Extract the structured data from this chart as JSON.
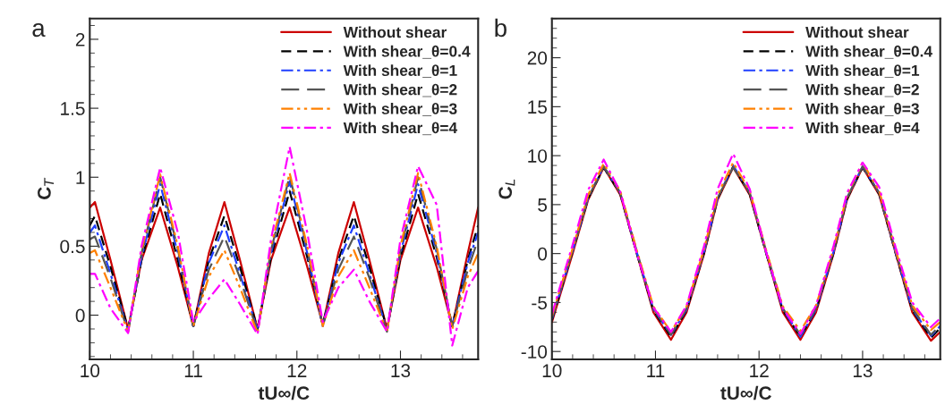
{
  "chart_data": [
    {
      "type": "line",
      "xlabel": "tU∞/C",
      "ylabel": "C$_{T}$",
      "annotations": [
        "a"
      ],
      "xlim": [
        10,
        13.75
      ],
      "xticks": [
        10,
        11,
        12,
        13
      ],
      "ylim": [
        -0.32,
        2.15
      ],
      "yticks": [
        0,
        0.5,
        1,
        1.5,
        2
      ],
      "legend": "top right",
      "grid": false,
      "marker": "none",
      "x": [
        10.0,
        10.05,
        10.2,
        10.37,
        10.5,
        10.68,
        10.85,
        11.0,
        11.15,
        11.3,
        11.45,
        11.62,
        11.75,
        11.93,
        12.1,
        12.25,
        12.4,
        12.55,
        12.7,
        12.87,
        13.0,
        13.17,
        13.35,
        13.5,
        13.65,
        13.75
      ],
      "series": [
        {
          "name": "Without shear",
          "color": "#cc0000",
          "line_style": "solid",
          "values": [
            0.78,
            0.82,
            0.4,
            -0.1,
            0.4,
            0.78,
            0.35,
            -0.08,
            0.45,
            0.82,
            0.4,
            -0.1,
            0.4,
            0.78,
            0.35,
            -0.07,
            0.45,
            0.82,
            0.4,
            -0.1,
            0.4,
            0.78,
            0.35,
            -0.08,
            0.45,
            0.78
          ]
        },
        {
          "name": "With shear_θ=0.4",
          "color": "#000000",
          "line_style": "dashed",
          "values": [
            0.65,
            0.72,
            0.35,
            -0.1,
            0.4,
            0.88,
            0.4,
            -0.08,
            0.4,
            0.72,
            0.35,
            -0.1,
            0.42,
            0.9,
            0.42,
            -0.07,
            0.4,
            0.72,
            0.35,
            -0.1,
            0.42,
            0.88,
            0.42,
            -0.08,
            0.4,
            0.65
          ]
        },
        {
          "name": "With shear_θ=1",
          "color": "#1f3fff",
          "line_style": "dashdot",
          "values": [
            0.6,
            0.65,
            0.3,
            -0.11,
            0.42,
            0.95,
            0.45,
            -0.08,
            0.38,
            0.65,
            0.3,
            -0.11,
            0.45,
            0.97,
            0.45,
            -0.08,
            0.38,
            0.65,
            0.3,
            -0.11,
            0.45,
            0.95,
            0.45,
            -0.08,
            0.38,
            0.6
          ]
        },
        {
          "name": "With shear_θ=2",
          "color": "#555555",
          "line_style": "longdash",
          "values": [
            0.55,
            0.57,
            0.27,
            -0.12,
            0.45,
            1.0,
            0.48,
            -0.08,
            0.33,
            0.57,
            0.27,
            -0.12,
            0.47,
            1.01,
            0.48,
            -0.08,
            0.33,
            0.57,
            0.27,
            -0.12,
            0.47,
            1.0,
            0.48,
            -0.08,
            0.33,
            0.55
          ]
        },
        {
          "name": "With shear_θ=3",
          "color": "#ff8000",
          "line_style": "dashdotdot",
          "values": [
            0.45,
            0.47,
            0.2,
            -0.12,
            0.47,
            1.02,
            0.5,
            -0.08,
            0.28,
            0.47,
            0.2,
            -0.13,
            0.5,
            1.03,
            0.5,
            -0.08,
            0.28,
            0.47,
            0.2,
            -0.12,
            0.5,
            1.03,
            0.5,
            -0.1,
            0.28,
            0.45
          ]
        },
        {
          "name": "With shear_θ=4",
          "color": "#ff00ff",
          "line_style": "dashdot",
          "values": [
            0.3,
            0.3,
            0.05,
            -0.13,
            0.5,
            1.07,
            0.6,
            -0.05,
            0.12,
            0.26,
            0.08,
            -0.14,
            0.55,
            1.22,
            0.6,
            -0.05,
            0.2,
            0.33,
            0.1,
            -0.12,
            0.55,
            1.08,
            0.8,
            -0.22,
            0.2,
            0.32
          ]
        }
      ]
    },
    {
      "type": "line",
      "xlabel": "tU∞/C",
      "ylabel": "C$_{L}$",
      "annotations": [
        "b"
      ],
      "xlim": [
        10,
        13.75
      ],
      "xticks": [
        10,
        11,
        12,
        13
      ],
      "ylim": [
        -10.8,
        24
      ],
      "yticks": [
        -10,
        -5,
        0,
        5,
        10,
        15,
        20
      ],
      "legend": "top right",
      "grid": false,
      "marker": "none",
      "x": [
        10.0,
        10.1,
        10.2,
        10.35,
        10.5,
        10.66,
        10.82,
        10.98,
        11.15,
        11.3,
        11.47,
        11.6,
        11.75,
        11.91,
        12.07,
        12.23,
        12.4,
        12.55,
        12.72,
        12.85,
        13.0,
        13.16,
        13.32,
        13.48,
        13.66,
        13.75
      ],
      "series": [
        {
          "name": "Without shear",
          "color": "#cc0000",
          "line_style": "solid",
          "values": [
            -7,
            -3.5,
            0,
            5.5,
            8.8,
            6,
            0,
            -6,
            -8.8,
            -6,
            0,
            5.5,
            8.8,
            6,
            0,
            -6,
            -8.8,
            -6,
            0,
            5.5,
            8.8,
            6,
            0,
            -6,
            -8.9,
            -8
          ]
        },
        {
          "name": "With shear_θ=0.4",
          "color": "#000000",
          "line_style": "dashed",
          "values": [
            -6.8,
            -3.3,
            0.2,
            5.6,
            8.8,
            6.1,
            0,
            -5.8,
            -8.5,
            -5.8,
            0.1,
            5.6,
            8.9,
            6.1,
            0,
            -5.8,
            -8.5,
            -5.8,
            0.1,
            5.6,
            8.8,
            6.1,
            0,
            -5.8,
            -8.6,
            -7.6
          ]
        },
        {
          "name": "With shear_θ=1",
          "color": "#1f3fff",
          "line_style": "dashdot",
          "values": [
            -6.7,
            -3.2,
            0.3,
            5.7,
            8.9,
            6.2,
            0.1,
            -5.7,
            -8.3,
            -5.7,
            0.2,
            5.7,
            9.0,
            6.2,
            0.1,
            -5.7,
            -8.5,
            -5.7,
            0.2,
            5.7,
            8.9,
            6.2,
            0.1,
            -5.7,
            -8.4,
            -7.4
          ]
        },
        {
          "name": "With shear_θ=2",
          "color": "#555555",
          "line_style": "longdash",
          "values": [
            -6.6,
            -3.1,
            0.3,
            5.7,
            8.9,
            6.2,
            0.2,
            -5.6,
            -8.3,
            -5.6,
            0.3,
            5.7,
            8.8,
            6.2,
            0.2,
            -5.6,
            -8.3,
            -5.6,
            0.3,
            5.7,
            8.9,
            6.2,
            0.2,
            -5.6,
            -8.3,
            -7.3
          ]
        },
        {
          "name": "With shear_θ=3",
          "color": "#ff8000",
          "line_style": "dashdotdot",
          "values": [
            -6.4,
            -2.9,
            0.5,
            6.0,
            9.2,
            6.4,
            0.3,
            -5.4,
            -8.0,
            -5.4,
            0.5,
            6.0,
            9.3,
            6.4,
            0.3,
            -5.4,
            -7.9,
            -5.3,
            0.5,
            6.0,
            9.3,
            6.4,
            0.3,
            -5.3,
            -7.8,
            -7.0
          ]
        },
        {
          "name": "With shear_θ=4",
          "color": "#ff00ff",
          "line_style": "dashdot",
          "values": [
            -6.2,
            -2.6,
            0.9,
            6.5,
            9.6,
            6.3,
            0.0,
            -5.5,
            -8.0,
            -5.3,
            0.8,
            6.6,
            10.2,
            6.6,
            0.1,
            -5.6,
            -8.2,
            -5.3,
            0.8,
            6.2,
            9.3,
            6.8,
            0.6,
            -5.0,
            -7.5,
            -6.6
          ]
        }
      ]
    }
  ]
}
